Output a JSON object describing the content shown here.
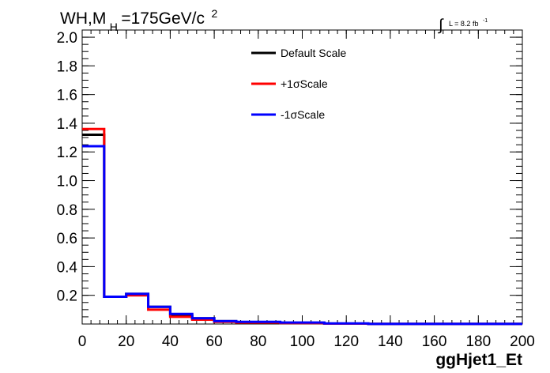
{
  "chart_data": {
    "type": "step-histogram",
    "title": {
      "prefix": "WH,M",
      "subscript": "H",
      "main": "=175GeV/c",
      "superscript": "2"
    },
    "luminosity": {
      "integral_symbol": "∫",
      "text": "L = 8.2 fb",
      "superscript": "-1"
    },
    "xlabel": "ggHjet1_Et",
    "ylabel": "",
    "xlim": [
      0,
      200
    ],
    "ylim": [
      0,
      2.05
    ],
    "xticks": [
      "0",
      "20",
      "40",
      "60",
      "80",
      "100",
      "120",
      "140",
      "160",
      "180",
      "200"
    ],
    "yticks": [
      "0.2",
      "0.4",
      "0.6",
      "0.8",
      "1.0",
      "1.2",
      "1.4",
      "1.6",
      "1.8",
      "2.0"
    ],
    "grid": false,
    "legend_position": "top-center",
    "bin_edges": [
      0,
      10,
      20,
      30,
      40,
      50,
      60,
      70,
      90,
      110,
      130,
      200
    ],
    "series": [
      {
        "name": "Default Scale",
        "color": "#000000",
        "values": [
          1.32,
          0.19,
          0.21,
          0.12,
          0.06,
          0.04,
          0.02,
          0.01,
          0.008,
          0.003,
          0.001
        ]
      },
      {
        "name": "+1σScale",
        "color": "#ff0000",
        "values": [
          1.36,
          0.19,
          0.2,
          0.1,
          0.05,
          0.03,
          0.015,
          0.01,
          0.007,
          0.003,
          0.001
        ]
      },
      {
        "name": "-1σScale",
        "color": "#0000ff",
        "values": [
          1.24,
          0.19,
          0.21,
          0.12,
          0.07,
          0.04,
          0.02,
          0.015,
          0.01,
          0.004,
          0.001
        ]
      }
    ]
  }
}
